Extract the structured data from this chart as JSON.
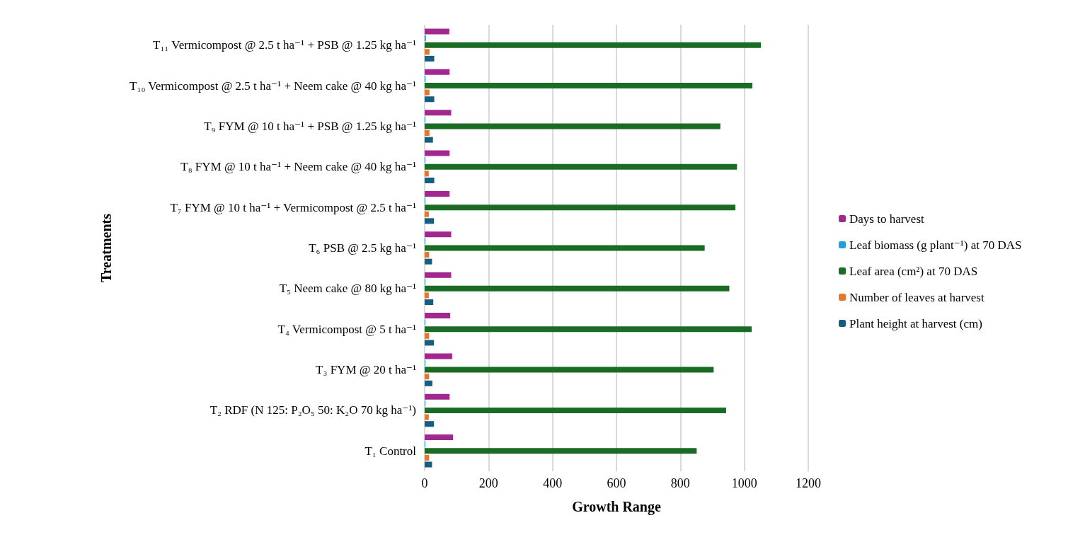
{
  "chart_data": {
    "type": "bar",
    "orientation": "horizontal",
    "xlabel": "Growth Range",
    "ylabel": "Treatments",
    "categories": [
      "T₁₁ Vermicompost @ 2.5 t ha⁻¹ + PSB @ 1.25 kg ha⁻¹",
      "T₁₀ Vermicompost @ 2.5 t ha⁻¹ + Neem cake @ 40 kg ha⁻¹",
      "T₉ FYM @ 10 t ha⁻¹ + PSB @ 1.25 kg ha⁻¹",
      "T₈ FYM @ 10 t ha⁻¹ + Neem cake @ 40 kg ha⁻¹",
      "T₇ FYM @ 10 t ha⁻¹ + Vermicompost @ 2.5 t ha⁻¹",
      "T₆ PSB @ 2.5 kg ha⁻¹",
      "T₅ Neem cake @ 80 kg ha⁻¹",
      "T₄ Vermicompost @ 5 t ha⁻¹",
      "T₃ FYM @ 20 t ha⁻¹",
      "T₂ RDF (N 125: P₂O₅ 50: K₂O 70 kg ha⁻¹)",
      "T₁ Control"
    ],
    "series": [
      {
        "name": "Days to harvest",
        "color": "#a0288f",
        "values": [
          77,
          78,
          83,
          78,
          78,
          83,
          83,
          80,
          86,
          78,
          89
        ]
      },
      {
        "name": "Leaf biomass (g plant⁻¹) at 70 DAS",
        "color": "#1ca3d4",
        "values": [
          4,
          3,
          2,
          2,
          2,
          2,
          2,
          2,
          2,
          2,
          2
        ]
      },
      {
        "name": "Leaf area (cm²) at 70 DAS",
        "color": "#1a6b24",
        "values": [
          1052,
          1025,
          925,
          977,
          972,
          876,
          953,
          1023,
          904,
          943,
          851
        ]
      },
      {
        "name": "Number of leaves at harvest",
        "color": "#e5752f",
        "values": [
          15,
          15,
          15,
          13,
          13,
          14,
          13,
          14,
          14,
          13,
          14
        ]
      },
      {
        "name": "Plant height at harvest (cm)",
        "color": "#175d80",
        "values": [
          30,
          30,
          26,
          30,
          29,
          23,
          27,
          29,
          24,
          29,
          23
        ]
      }
    ],
    "xlim": [
      0,
      1200
    ],
    "xticks": [
      0,
      200,
      400,
      600,
      800,
      1000,
      1200
    ],
    "grid": "x",
    "legend": "right"
  }
}
